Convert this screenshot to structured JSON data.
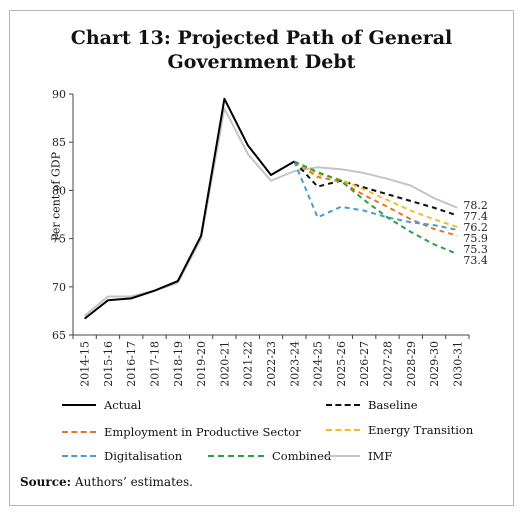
{
  "title_line1": "Chart 13: Projected Path of General",
  "title_line2": "Government Debt",
  "source_label": "Source:",
  "source_text": "Authors’ estimates.",
  "chart_data": {
    "type": "line",
    "title": "Chart 13: Projected Path of General Government Debt",
    "ylabel": "Per cent of GDP",
    "xlabel": "",
    "ylim": [
      65,
      90
    ],
    "yticks": [
      "65",
      "70",
      "75",
      "80",
      "85",
      "90"
    ],
    "categories": [
      "2014-15",
      "2015-16",
      "2016-17",
      "2017-18",
      "2018-19",
      "2019-20",
      "2020-21",
      "2021-22",
      "2022-23",
      "2023-24",
      "2024-25",
      "2025-26",
      "2026-27",
      "2027-28",
      "2028-29",
      "2029-30",
      "2030-31"
    ],
    "legend_position": "bottom",
    "grid": false,
    "series": [
      {
        "name": "Actual",
        "color": "#000000",
        "dash": "solid",
        "values": [
          66.7,
          68.6,
          68.8,
          69.6,
          70.6,
          75.3,
          89.5,
          84.7,
          81.6,
          83.0,
          null,
          null,
          null,
          null,
          null,
          null,
          null
        ]
      },
      {
        "name": "Baseline",
        "color": "#111111",
        "dash": "dashed",
        "values": [
          null,
          null,
          null,
          null,
          null,
          null,
          null,
          null,
          null,
          83.0,
          80.4,
          81.0,
          80.3,
          79.6,
          78.9,
          78.2,
          77.4
        ]
      },
      {
        "name": "Employment in Productive Sector",
        "color": "#e8742a",
        "dash": "dashed",
        "values": [
          null,
          null,
          null,
          null,
          null,
          null,
          null,
          null,
          null,
          83.0,
          81.4,
          80.9,
          79.5,
          78.3,
          77.0,
          76.0,
          75.3
        ]
      },
      {
        "name": "Energy Transition",
        "color": "#f2bf1a",
        "dash": "dashed",
        "values": [
          null,
          null,
          null,
          null,
          null,
          null,
          null,
          null,
          null,
          83.0,
          81.7,
          81.1,
          80.1,
          79.0,
          77.9,
          77.0,
          76.2
        ]
      },
      {
        "name": "Digitalisation",
        "color": "#4a9bd1",
        "dash": "dashed",
        "values": [
          null,
          null,
          null,
          null,
          null,
          null,
          null,
          null,
          null,
          83.0,
          77.2,
          78.3,
          77.9,
          77.2,
          76.7,
          76.4,
          75.9
        ]
      },
      {
        "name": "Combined",
        "color": "#27a243",
        "dash": "dashed",
        "values": [
          null,
          null,
          null,
          null,
          null,
          null,
          null,
          null,
          null,
          83.0,
          81.9,
          81.0,
          79.0,
          77.2,
          75.7,
          74.4,
          73.4
        ]
      },
      {
        "name": "IMF",
        "color": "#c4c4c4",
        "dash": "solid",
        "values": [
          67.0,
          69.0,
          69.0,
          69.6,
          70.4,
          75.0,
          88.5,
          83.8,
          81.0,
          82.0,
          82.4,
          82.2,
          81.8,
          81.2,
          80.5,
          79.2,
          78.2
        ]
      }
    ],
    "end_labels": [
      "78.2",
      "77.4",
      "76.2",
      "75.9",
      "75.3",
      "73.4"
    ]
  }
}
